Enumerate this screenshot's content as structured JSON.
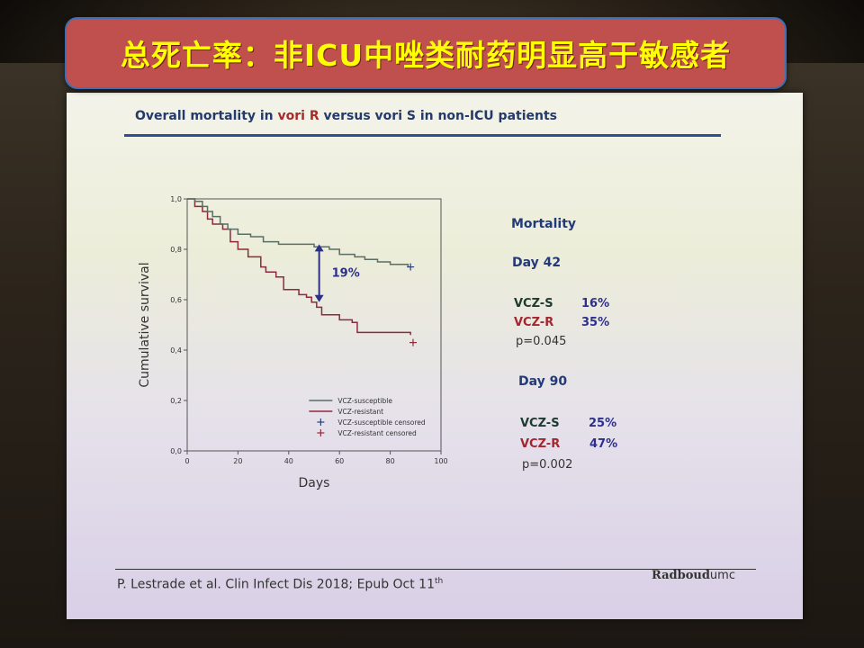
{
  "banner": {
    "text": "总死亡率：非ICU中唑类耐药明显高于敏感者"
  },
  "slide": {
    "title_pre": "Overall mortality in ",
    "title_red": "vori R",
    "title_post": " versus vori S in non-ICU patients",
    "citation": "P. Lestrade et al. Clin Infect Dis 2018; Epub Oct 11",
    "citation_sup": "th",
    "logo_main": "Radboud",
    "logo_suffix": "umc"
  },
  "stats": {
    "heading": "Mortality",
    "day42": {
      "label": "Day 42",
      "s_label": "VCZ-S",
      "s_value": "16%",
      "r_label": "VCZ-R",
      "r_value": "35%",
      "p": "p=0.045"
    },
    "day90": {
      "label": "Day 90",
      "s_label": "VCZ-S",
      "s_value": "25%",
      "r_label": "VCZ-R",
      "r_value": "47%",
      "p": "p=0.002"
    }
  },
  "colors": {
    "susceptible": "#5a6e64",
    "resistant": "#8e2a3c",
    "arrow": "#2c2f86"
  },
  "chart_data": {
    "type": "line",
    "xlabel": "Days",
    "ylabel": "Cumulative survival",
    "xlim": [
      0,
      100
    ],
    "ylim": [
      0,
      1.0
    ],
    "x_ticks": [
      0,
      20,
      40,
      60,
      80,
      100
    ],
    "y_ticks": [
      "0,0",
      "0,2",
      "0,4",
      "0,6",
      "0,8",
      "1,0"
    ],
    "y_tick_values": [
      0,
      0.2,
      0.4,
      0.6,
      0.8,
      1.0
    ],
    "series": [
      {
        "name": "VCZ-susceptible",
        "step": [
          [
            0,
            1.0
          ],
          [
            3,
            0.99
          ],
          [
            6,
            0.97
          ],
          [
            8,
            0.95
          ],
          [
            10,
            0.93
          ],
          [
            13,
            0.9
          ],
          [
            16,
            0.88
          ],
          [
            20,
            0.86
          ],
          [
            25,
            0.85
          ],
          [
            30,
            0.83
          ],
          [
            36,
            0.82
          ],
          [
            42,
            0.82
          ],
          [
            50,
            0.81
          ],
          [
            56,
            0.8
          ],
          [
            60,
            0.78
          ],
          [
            66,
            0.77
          ],
          [
            70,
            0.76
          ],
          [
            75,
            0.75
          ],
          [
            80,
            0.74
          ],
          [
            87,
            0.73
          ]
        ],
        "censor": [
          [
            88,
            0.73
          ]
        ]
      },
      {
        "name": "VCZ-resistant",
        "step": [
          [
            0,
            1.0
          ],
          [
            3,
            0.97
          ],
          [
            6,
            0.95
          ],
          [
            8,
            0.92
          ],
          [
            10,
            0.9
          ],
          [
            14,
            0.88
          ],
          [
            17,
            0.83
          ],
          [
            20,
            0.8
          ],
          [
            24,
            0.77
          ],
          [
            29,
            0.73
          ],
          [
            31,
            0.71
          ],
          [
            35,
            0.69
          ],
          [
            38,
            0.64
          ],
          [
            44,
            0.62
          ],
          [
            47,
            0.61
          ],
          [
            49,
            0.59
          ],
          [
            51,
            0.57
          ],
          [
            53,
            0.54
          ],
          [
            60,
            0.52
          ],
          [
            65,
            0.51
          ],
          [
            67,
            0.47
          ],
          [
            72,
            0.47
          ],
          [
            88,
            0.46
          ]
        ],
        "censor": [
          [
            89,
            0.43
          ]
        ]
      },
      {
        "name": "VCZ-susceptible censored"
      },
      {
        "name": "VCZ-resistant censored"
      }
    ],
    "annotations": [
      {
        "text": "19%",
        "x": 52,
        "y_from": 0.82,
        "y_to": 0.59
      }
    ],
    "legend": "bottom-right",
    "grid": false
  }
}
